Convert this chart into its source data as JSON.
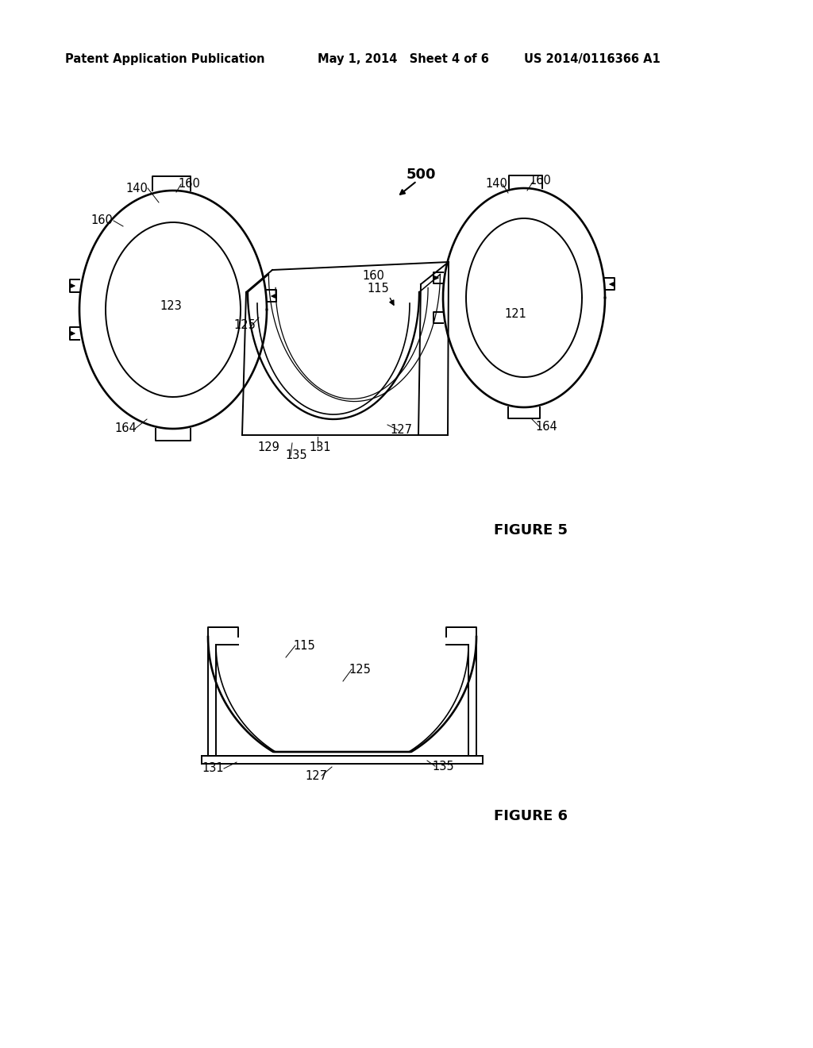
{
  "bg_color": "#ffffff",
  "line_color": "#000000",
  "header_left": "Patent Application Publication",
  "header_middle": "May 1, 2014   Sheet 4 of 6",
  "header_right": "US 2014/0116366 A1",
  "figure5_label": "FIGURE 5",
  "figure6_label": "FIGURE 6"
}
